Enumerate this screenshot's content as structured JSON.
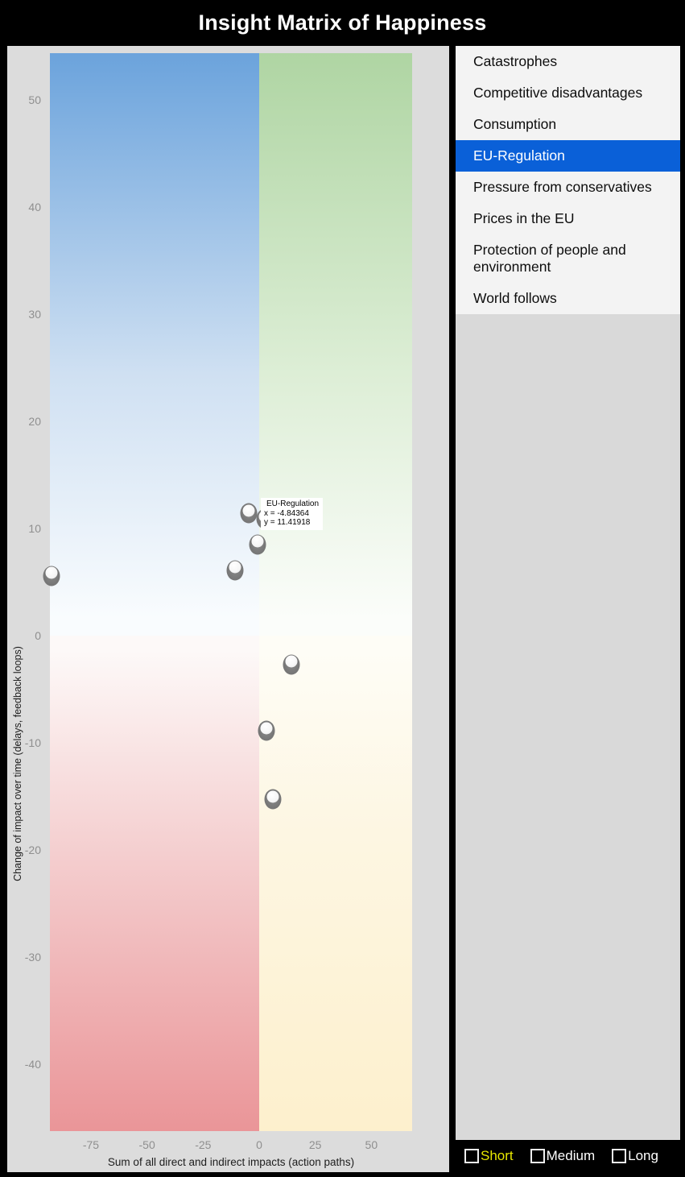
{
  "title": "Insight Matrix of Happiness",
  "list": {
    "items": [
      {
        "label": "Catastrophes",
        "selected": false
      },
      {
        "label": "Competitive disadvantages",
        "selected": false
      },
      {
        "label": "Consumption",
        "selected": false
      },
      {
        "label": "EU-Regulation",
        "selected": true
      },
      {
        "label": "Pressure from conservatives",
        "selected": false
      },
      {
        "label": "Prices in the EU",
        "selected": false
      },
      {
        "label": "Protection of people and environment",
        "selected": false
      },
      {
        "label": "World follows",
        "selected": false
      }
    ],
    "selected_color": "#0a60d8"
  },
  "legend": {
    "options": [
      {
        "label": "Short",
        "checked": false,
        "color": "#e8e800"
      },
      {
        "label": "Medium",
        "checked": false,
        "color": "#ffffff"
      },
      {
        "label": "Long",
        "checked": false,
        "color": "#ffffff"
      }
    ]
  },
  "tooltip": {
    "title": "EU-Regulation",
    "x_line": "x = -4.84364",
    "y_line": "y = 11.41918"
  },
  "chart_data": {
    "type": "scatter",
    "title": "Insight Matrix of Happiness",
    "xlabel": "Sum of all direct and indirect impacts (action paths)",
    "ylabel": "Change of impact over time (delays, feedback loops)",
    "x_ticks": [
      -75,
      -50,
      -25,
      0,
      25,
      50
    ],
    "y_ticks": [
      50,
      40,
      30,
      20,
      10,
      0,
      -10,
      -20,
      -30,
      -40
    ],
    "xlim": [
      -93.3,
      68.2
    ],
    "ylim": [
      -46.2,
      54.4
    ],
    "grid": false,
    "quadrant_colors": {
      "top_left": "#6ba3dc",
      "top_right": "#afd5a3",
      "bottom_left": "#ea9598",
      "bottom_right": "#fdf0cd"
    },
    "points": [
      {
        "x": -4.84364,
        "y": 11.41918,
        "label": "EU-Regulation",
        "selected": true
      },
      {
        "x": 2.5,
        "y": 10.9
      },
      {
        "x": -0.7,
        "y": 8.5
      },
      {
        "x": -10.8,
        "y": 6.1
      },
      {
        "x": -92.6,
        "y": 5.6
      },
      {
        "x": 14.4,
        "y": -2.7
      },
      {
        "x": 3.2,
        "y": -8.9
      },
      {
        "x": 6.1,
        "y": -15.3
      }
    ]
  }
}
